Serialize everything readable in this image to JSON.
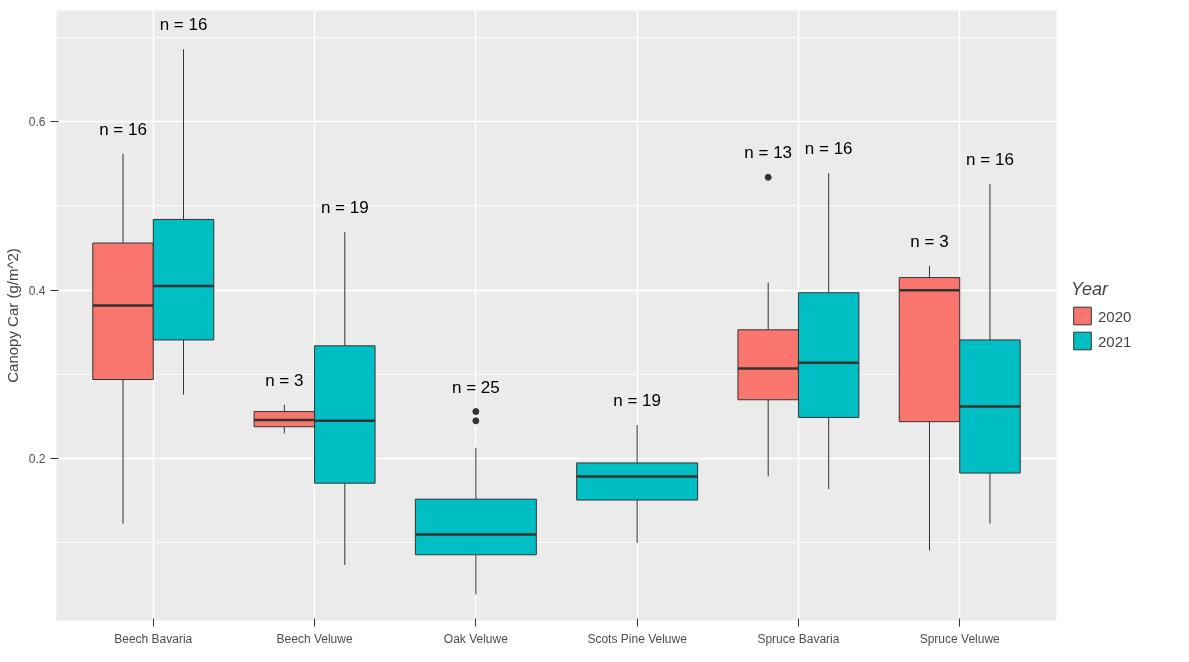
{
  "chart_data": {
    "type": "box",
    "ylabel": "Canopy Car (g/m^2)",
    "legend_title": "Year",
    "legend": "right",
    "grid": true,
    "categories": [
      "Beech Bavaria",
      "Beech Veluwe",
      "Oak Veluwe",
      "Scots Pine Veluwe",
      "Spruce Bavaria",
      "Spruce Veluwe"
    ],
    "ylim": [
      0.008,
      0.732
    ],
    "yticks": [
      0.2,
      0.4,
      0.6
    ],
    "series": [
      {
        "name": "2020",
        "color": "#f8766d",
        "boxes": [
          {
            "low": 0.123,
            "q1": 0.294,
            "median": 0.382,
            "q3": 0.456,
            "high": 0.562
          },
          {
            "low": 0.23,
            "q1": 0.238,
            "median": 0.246,
            "q3": 0.256,
            "high": 0.264
          },
          null,
          null,
          {
            "low": 0.179,
            "q1": 0.27,
            "median": 0.307,
            "q3": 0.353,
            "high": 0.409,
            "outliers": [
              0.534
            ]
          },
          {
            "low": 0.091,
            "q1": 0.244,
            "median": 0.4,
            "q3": 0.415,
            "high": 0.429
          }
        ]
      },
      {
        "name": "2021",
        "color": "#00bfc4",
        "boxes": [
          {
            "low": 0.276,
            "q1": 0.341,
            "median": 0.405,
            "q3": 0.484,
            "high": 0.686
          },
          {
            "low": 0.074,
            "q1": 0.171,
            "median": 0.245,
            "q3": 0.334,
            "high": 0.469
          },
          {
            "low": 0.039,
            "q1": 0.086,
            "median": 0.11,
            "q3": 0.152,
            "high": 0.213,
            "outliers": [
              0.245,
              0.256
            ]
          },
          {
            "low": 0.1,
            "q1": 0.151,
            "median": 0.179,
            "q3": 0.195,
            "high": 0.24
          },
          {
            "low": 0.164,
            "q1": 0.249,
            "median": 0.314,
            "q3": 0.397,
            "high": 0.539
          },
          {
            "low": 0.123,
            "q1": 0.183,
            "median": 0.262,
            "q3": 0.341,
            "high": 0.526
          }
        ]
      }
    ],
    "annotations": [
      "n = 16",
      "n = 16",
      "n = 3",
      "n = 19",
      "n = 25",
      "n = 19",
      "n = 13",
      "n = 16",
      "n = 3",
      "n = 16"
    ]
  }
}
